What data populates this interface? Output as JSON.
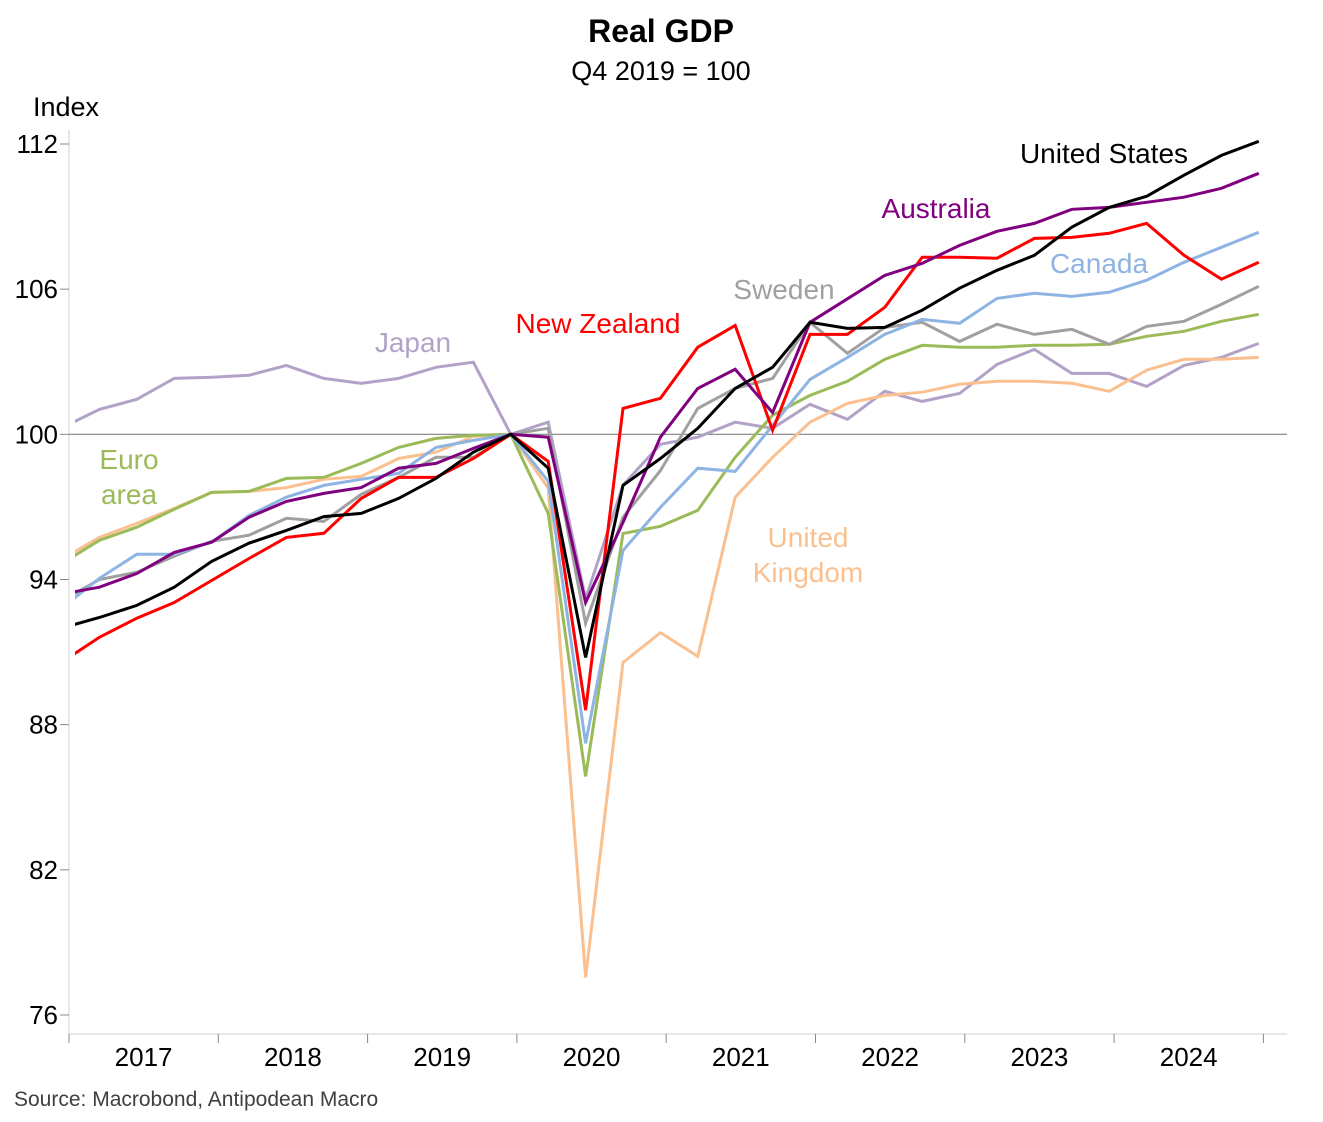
{
  "chart_data": {
    "type": "line",
    "title": "Real GDP",
    "subtitle": "Q4 2019 = 100",
    "ylabel": "Index",
    "xlabel": "",
    "source": "Source: Macrobond, Antipodean Macro",
    "ylim": [
      76,
      112
    ],
    "yticks": [
      "76",
      "82",
      "88",
      "94",
      "100",
      "106",
      "112"
    ],
    "xtick_labels": [
      "2017",
      "2018",
      "2019",
      "2020",
      "2021",
      "2022",
      "2023",
      "2024"
    ],
    "reference_line": 100,
    "grid": false,
    "x": [
      "2016Q4",
      "2017Q1",
      "2017Q2",
      "2017Q3",
      "2017Q4",
      "2018Q1",
      "2018Q2",
      "2018Q3",
      "2018Q4",
      "2019Q1",
      "2019Q2",
      "2019Q3",
      "2019Q4",
      "2020Q1",
      "2020Q2",
      "2020Q3",
      "2020Q4",
      "2021Q1",
      "2021Q2",
      "2021Q3",
      "2021Q4",
      "2022Q1",
      "2022Q2",
      "2022Q3",
      "2022Q4",
      "2023Q1",
      "2023Q2",
      "2023Q3",
      "2023Q4",
      "2024Q1",
      "2024Q2",
      "2024Q3",
      "2024Q4"
    ],
    "series": [
      {
        "name": "Japan",
        "label": "Japan",
        "color": "#b3a2c7",
        "values": [
          100.28,
          101.03,
          101.45,
          102.31,
          102.36,
          102.44,
          102.85,
          102.31,
          102.11,
          102.31,
          102.77,
          102.98,
          100,
          100.5,
          93.2,
          97.9,
          99.59,
          99.88,
          100.5,
          100.25,
          101.24,
          100.62,
          101.78,
          101.36,
          101.69,
          102.89,
          103.51,
          102.52,
          102.52,
          101.98,
          102.85,
          103.18,
          103.76
        ]
      },
      {
        "name": "United Kingdom",
        "label": [
          "United",
          "Kingdom"
        ],
        "color": "#fac090",
        "values": [
          94.85,
          95.74,
          96.32,
          96.94,
          97.6,
          97.64,
          97.8,
          98.14,
          98.26,
          99.0,
          99.26,
          99.92,
          100,
          97.77,
          77.55,
          90.57,
          91.8,
          90.82,
          97.4,
          99.05,
          100.5,
          101.28,
          101.61,
          101.74,
          102.07,
          102.19,
          102.19,
          102.11,
          101.78,
          102.65,
          103.1,
          103.1,
          103.18
        ]
      },
      {
        "name": "Euro area",
        "label": [
          "Euro",
          "area"
        ],
        "color": "#9bbb59",
        "values": [
          94.67,
          95.62,
          96.16,
          96.9,
          97.6,
          97.64,
          98.18,
          98.22,
          98.8,
          99.46,
          99.83,
          99.96,
          100,
          96.73,
          85.86,
          95.9,
          96.2,
          96.86,
          99.05,
          100.79,
          101.61,
          102.19,
          103.1,
          103.68,
          103.6,
          103.6,
          103.68,
          103.68,
          103.72,
          104.05,
          104.26,
          104.67,
          104.96
        ]
      },
      {
        "name": "Sweden",
        "label": "Sweden",
        "color": "#a0a0a0",
        "values": [
          93.12,
          94.0,
          94.3,
          94.96,
          95.58,
          95.83,
          96.53,
          96.4,
          97.52,
          98.22,
          99.05,
          99.05,
          100,
          100.25,
          92.19,
          96.57,
          98.5,
          101.07,
          101.9,
          102.31,
          104.63,
          103.35,
          104.42,
          104.63,
          103.84,
          104.55,
          104.13,
          104.34,
          103.72,
          104.46,
          104.67,
          105.37,
          106.12
        ]
      },
      {
        "name": "Canada",
        "label": "Canada",
        "color": "#8db4e2",
        "values": [
          92.83,
          94.05,
          95.04,
          95.04,
          95.54,
          96.65,
          97.4,
          97.89,
          98.14,
          98.39,
          99.46,
          99.75,
          100,
          98.06,
          87.23,
          95.2,
          96.98,
          98.6,
          98.47,
          100.37,
          102.27,
          103.18,
          104.13,
          104.75,
          104.59,
          105.62,
          105.83,
          105.7,
          105.87,
          106.37,
          107.11,
          107.73,
          108.35
        ]
      },
      {
        "name": "New Zealand",
        "label": "New Zealand",
        "color": "#ff0000",
        "values": [
          90.59,
          91.61,
          92.4,
          93.05,
          93.96,
          94.87,
          95.74,
          95.91,
          97.35,
          98.22,
          98.22,
          99.0,
          100,
          98.88,
          88.6,
          101.07,
          101.49,
          103.6,
          104.5,
          100.17,
          104.13,
          104.13,
          105.25,
          107.32,
          107.32,
          107.28,
          108.1,
          108.14,
          108.31,
          108.72,
          107.4,
          106.41,
          107.11
        ]
      },
      {
        "name": "Australia",
        "label": "Australia",
        "color": "#800080",
        "values": [
          93.4,
          93.68,
          94.25,
          95.12,
          95.54,
          96.57,
          97.23,
          97.56,
          97.8,
          98.6,
          98.8,
          99.42,
          100,
          99.88,
          93.05,
          96.36,
          99.88,
          101.9,
          102.69,
          100.9,
          104.63,
          105.6,
          106.57,
          107.07,
          107.81,
          108.39,
          108.72,
          109.3,
          109.38,
          109.59,
          109.8,
          110.17,
          110.79
        ]
      },
      {
        "name": "United States",
        "label": "United States",
        "color": "#000000",
        "values": [
          92.0,
          92.43,
          92.93,
          93.68,
          94.75,
          95.5,
          96.03,
          96.6,
          96.73,
          97.35,
          98.18,
          99.26,
          100,
          98.6,
          90.78,
          97.89,
          99.0,
          100.25,
          101.9,
          102.77,
          104.63,
          104.38,
          104.42,
          105.13,
          106.04,
          106.78,
          107.4,
          108.56,
          109.38,
          109.84,
          110.71,
          111.53,
          112.11
        ]
      }
    ]
  }
}
